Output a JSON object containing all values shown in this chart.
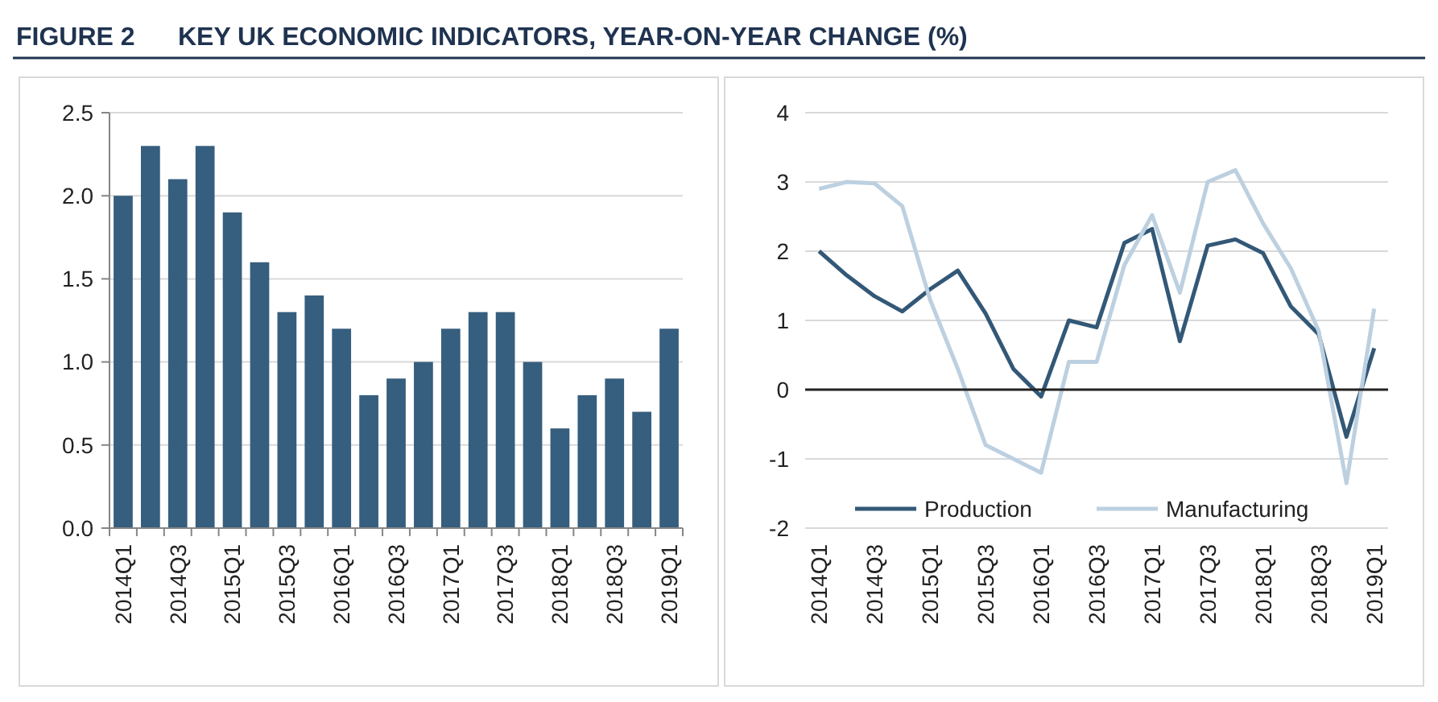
{
  "chart_data": [
    {
      "type": "bar",
      "title": "FIGURE 2      KEY UK ECONOMIC INDICATORS, YEAR-ON-YEAR CHANGE (%)",
      "categories": [
        "2014Q1",
        null,
        "2014Q3",
        null,
        "2015Q1",
        null,
        "2015Q3",
        null,
        "2016Q1",
        null,
        "2016Q3",
        null,
        "2017Q1",
        null,
        "2017Q3",
        null,
        "2018Q1",
        null,
        "2018Q3",
        null,
        "2019Q1"
      ],
      "values": [
        2.0,
        2.3,
        2.1,
        2.3,
        1.9,
        1.6,
        1.3,
        1.4,
        1.2,
        0.8,
        0.9,
        1.0,
        1.2,
        1.3,
        1.3,
        1.0,
        0.6,
        0.8,
        0.9,
        0.7,
        1.2
      ],
      "color": "#365e7e",
      "ylim": [
        0,
        2.5
      ],
      "yticks": [
        {
          "value": 0,
          "label": "0.0"
        },
        {
          "value": 0.5,
          "label": "0.5"
        },
        {
          "value": 1,
          "label": "1.0"
        },
        {
          "value": 1.5,
          "label": "1.5"
        },
        {
          "value": 2,
          "label": "2.0"
        },
        {
          "value": 2.5,
          "label": "2.5"
        }
      ],
      "grid": "y"
    },
    {
      "type": "line",
      "categories": [
        "2014Q1",
        null,
        "2014Q3",
        null,
        "2015Q1",
        null,
        "2015Q3",
        null,
        "2016Q1",
        null,
        "2016Q3",
        null,
        "2017Q1",
        null,
        "2017Q3",
        null,
        "2018Q1",
        null,
        "2018Q3",
        null,
        "2019Q1"
      ],
      "series": [
        {
          "name": "Production",
          "color": "#335877",
          "values": [
            2.0,
            1.65,
            1.35,
            1.13,
            1.45,
            1.72,
            1.1,
            0.3,
            -0.1,
            1.0,
            0.9,
            2.12,
            2.32,
            0.7,
            2.08,
            2.17,
            1.97,
            1.2,
            0.8,
            -0.68,
            0.6
          ]
        },
        {
          "name": "Manufacturing",
          "color": "#bcd0e0",
          "values": [
            2.9,
            3.0,
            2.98,
            2.65,
            1.3,
            0.3,
            -0.8,
            -1.0,
            -1.2,
            0.4,
            0.4,
            1.8,
            2.52,
            1.4,
            3.0,
            3.17,
            2.4,
            1.75,
            0.85,
            -1.35,
            1.17
          ]
        }
      ],
      "ylim": [
        -2,
        4
      ],
      "yticks": [
        -2,
        -1,
        0,
        1,
        2,
        3,
        4
      ],
      "grid": "y",
      "legend": "bottom",
      "line_style": "solid",
      "marker": "none"
    }
  ]
}
